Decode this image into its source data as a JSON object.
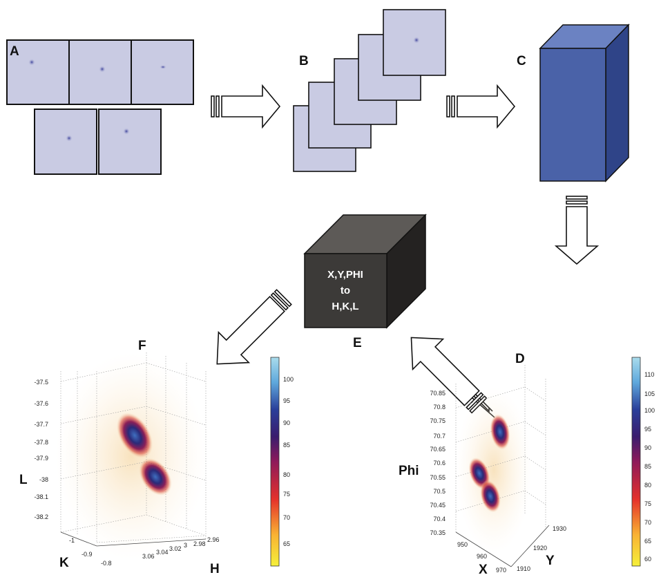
{
  "panels": {
    "A": "A",
    "B": "B",
    "C": "C",
    "D": "D",
    "E": "E",
    "F": "F"
  },
  "transform_box": {
    "line1": "X,Y,PHI",
    "line2": "to",
    "line3": "H,K,L"
  },
  "colors": {
    "frame_tint": "#c9cbe3",
    "volume_front": "#4a62a8",
    "volume_side": "#2f4488",
    "volume_top": "#6b82c2",
    "transform_front": "#3c3a38",
    "transform_top": "#5d5a57",
    "transform_side": "#242221"
  },
  "plot_left": {
    "axis_titles": {
      "L": "L",
      "K": "K",
      "H": "H"
    },
    "l_ticks": [
      "-37.5",
      "-37.6",
      "-37.7",
      "-37.8",
      "-37.9",
      "-38",
      "-38.1",
      "-38.2"
    ],
    "k_ticks": [
      "-1",
      "-0.9",
      "-0.8"
    ],
    "h_ticks": [
      "3.06",
      "3.04",
      "3.02",
      "3",
      "2.98",
      "2.96"
    ],
    "colorbar_ticks": [
      "100",
      "95",
      "90",
      "85",
      "80",
      "75",
      "70",
      "65"
    ]
  },
  "plot_right": {
    "axis_titles": {
      "Phi": "Phi",
      "X": "X",
      "Y": "Y"
    },
    "phi_ticks": [
      "70.85",
      "70.8",
      "70.75",
      "70.7",
      "70.65",
      "70.6",
      "70.55",
      "70.5",
      "70.45",
      "70.4",
      "70.35"
    ],
    "x_ticks": [
      "950",
      "960",
      "970"
    ],
    "y_ticks": [
      "1930",
      "1920",
      "1910"
    ],
    "colorbar_ticks": [
      "110",
      "105",
      "100",
      "95",
      "90",
      "85",
      "80",
      "75",
      "70",
      "65",
      "60"
    ]
  }
}
